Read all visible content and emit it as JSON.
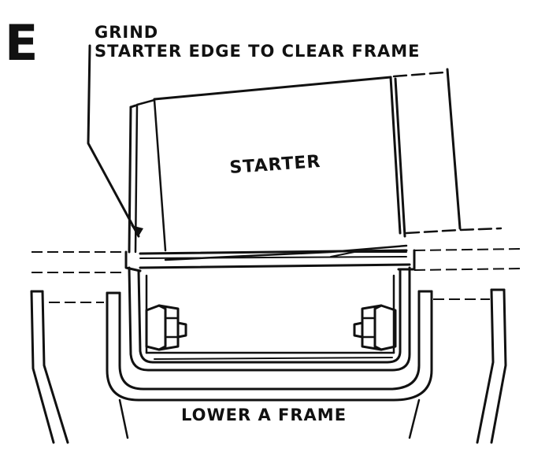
{
  "figure_letter": "E",
  "callout": {
    "line1": "GRIND",
    "line2": "STARTER EDGE TO CLEAR FRAME"
  },
  "labels": {
    "starter": "STARTER",
    "frame": "LOWER A FRAME"
  },
  "colors": {
    "ink": "#111111",
    "background": "#ffffff"
  }
}
